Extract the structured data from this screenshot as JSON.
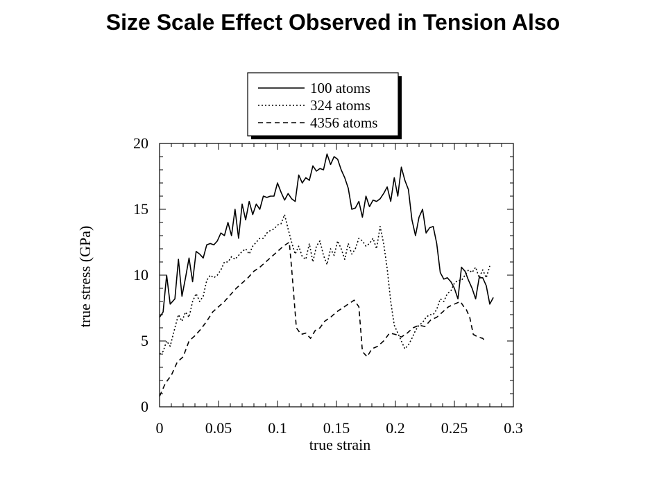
{
  "page_title": "Size Scale Effect Observed in Tension Also",
  "chart_data": {
    "type": "line",
    "title": "",
    "xlabel": "true strain",
    "ylabel": "true stress (GPa)",
    "xlim": [
      0,
      0.3
    ],
    "ylim": [
      0,
      20
    ],
    "xticks": [
      0,
      0.05,
      0.1,
      0.15,
      0.2,
      0.25,
      0.3
    ],
    "xtick_labels": [
      "0",
      "0.05",
      "0.1",
      "0.15",
      "0.2",
      "0.25",
      "0.3"
    ],
    "yticks": [
      0,
      5,
      10,
      15,
      20
    ],
    "ytick_labels": [
      "0",
      "5",
      "10",
      "15",
      "20"
    ],
    "grid": false,
    "legend_position": "above plot, right-center",
    "series": [
      {
        "name": "100 atoms",
        "line_style": "solid",
        "color": "#000000",
        "x": [
          0.0,
          0.003,
          0.006,
          0.009,
          0.013,
          0.016,
          0.019,
          0.022,
          0.025,
          0.028,
          0.031,
          0.034,
          0.037,
          0.04,
          0.043,
          0.046,
          0.049,
          0.052,
          0.055,
          0.058,
          0.061,
          0.064,
          0.067,
          0.07,
          0.073,
          0.076,
          0.079,
          0.082,
          0.085,
          0.088,
          0.091,
          0.094,
          0.097,
          0.1,
          0.103,
          0.106,
          0.109,
          0.112,
          0.115,
          0.118,
          0.121,
          0.124,
          0.127,
          0.13,
          0.133,
          0.136,
          0.139,
          0.142,
          0.145,
          0.148,
          0.151,
          0.154,
          0.157,
          0.16,
          0.163,
          0.166,
          0.169,
          0.172,
          0.175,
          0.178,
          0.181,
          0.184,
          0.187,
          0.19,
          0.193,
          0.196,
          0.199,
          0.202,
          0.205,
          0.208,
          0.211,
          0.214,
          0.217,
          0.22,
          0.223,
          0.226,
          0.229,
          0.232,
          0.235,
          0.238,
          0.241,
          0.244,
          0.247,
          0.25,
          0.253,
          0.256,
          0.259,
          0.262,
          0.265,
          0.268,
          0.271,
          0.274,
          0.277,
          0.28,
          0.283
        ],
        "y": [
          6.8,
          7.2,
          10.0,
          7.8,
          8.2,
          11.2,
          8.4,
          9.8,
          11.3,
          9.5,
          11.8,
          11.6,
          11.3,
          12.3,
          12.4,
          12.3,
          12.6,
          13.2,
          13.0,
          14.0,
          13.0,
          15.0,
          12.8,
          15.4,
          14.2,
          15.6,
          14.6,
          15.4,
          15.0,
          16.0,
          15.9,
          16.0,
          16.0,
          17.0,
          16.3,
          15.7,
          16.2,
          15.8,
          15.6,
          17.6,
          17.0,
          17.4,
          17.2,
          18.3,
          17.9,
          18.1,
          18.0,
          19.2,
          18.4,
          19.0,
          18.8,
          18.0,
          17.4,
          16.6,
          15.0,
          15.1,
          15.6,
          14.4,
          16.0,
          15.2,
          15.7,
          15.6,
          15.8,
          16.2,
          16.7,
          15.6,
          17.4,
          16.0,
          18.2,
          17.2,
          16.5,
          14.2,
          13.0,
          14.4,
          15.0,
          13.2,
          13.6,
          13.7,
          12.4,
          10.2,
          9.7,
          9.8,
          9.5,
          9.0,
          8.2,
          10.6,
          10.3,
          9.6,
          9.0,
          8.2,
          9.8,
          9.8,
          9.2,
          7.8,
          8.3
        ]
      },
      {
        "name": "324 atoms",
        "line_style": "dotted",
        "color": "#000000",
        "x": [
          0.0,
          0.003,
          0.006,
          0.009,
          0.013,
          0.016,
          0.019,
          0.022,
          0.025,
          0.028,
          0.031,
          0.034,
          0.037,
          0.04,
          0.043,
          0.046,
          0.049,
          0.052,
          0.055,
          0.058,
          0.061,
          0.064,
          0.067,
          0.07,
          0.073,
          0.076,
          0.079,
          0.082,
          0.085,
          0.088,
          0.091,
          0.094,
          0.097,
          0.1,
          0.103,
          0.106,
          0.109,
          0.112,
          0.115,
          0.118,
          0.121,
          0.124,
          0.127,
          0.13,
          0.133,
          0.136,
          0.139,
          0.142,
          0.145,
          0.148,
          0.151,
          0.154,
          0.157,
          0.16,
          0.163,
          0.166,
          0.169,
          0.172,
          0.175,
          0.178,
          0.181,
          0.184,
          0.187,
          0.19,
          0.193,
          0.196,
          0.199,
          0.202,
          0.205,
          0.208,
          0.211,
          0.214,
          0.217,
          0.22,
          0.223,
          0.226,
          0.229,
          0.232,
          0.235,
          0.238,
          0.241,
          0.244,
          0.247,
          0.25,
          0.253,
          0.256,
          0.259,
          0.262,
          0.265,
          0.268,
          0.271,
          0.274,
          0.277,
          0.28
        ],
        "y": [
          4.0,
          4.2,
          5.0,
          4.6,
          6.0,
          7.0,
          6.5,
          7.2,
          6.8,
          8.0,
          8.6,
          8.0,
          8.4,
          9.6,
          10.0,
          9.8,
          10.0,
          10.4,
          11.0,
          11.0,
          11.4,
          11.2,
          11.5,
          11.8,
          12.0,
          11.6,
          12.2,
          12.5,
          12.8,
          12.8,
          13.2,
          13.4,
          13.5,
          13.8,
          13.9,
          14.6,
          13.5,
          12.5,
          11.6,
          12.2,
          11.4,
          11.2,
          12.4,
          11.0,
          12.2,
          12.6,
          11.5,
          10.8,
          12.0,
          11.5,
          12.6,
          12.0,
          11.2,
          12.4,
          11.6,
          12.0,
          12.8,
          12.6,
          12.2,
          12.4,
          12.8,
          12.0,
          13.7,
          12.4,
          10.5,
          8.0,
          6.2,
          5.6,
          5.0,
          4.4,
          4.7,
          5.2,
          5.8,
          6.2,
          6.4,
          6.8,
          7.0,
          7.0,
          7.4,
          8.2,
          8.0,
          8.6,
          8.8,
          9.4,
          9.6,
          9.6,
          10.0,
          10.4,
          10.2,
          10.6,
          9.8,
          10.4,
          9.8,
          10.7
        ]
      },
      {
        "name": "4356 atoms",
        "line_style": "dashed",
        "color": "#000000",
        "x": [
          0.0,
          0.005,
          0.01,
          0.015,
          0.02,
          0.025,
          0.03,
          0.035,
          0.04,
          0.045,
          0.05,
          0.055,
          0.06,
          0.065,
          0.07,
          0.075,
          0.08,
          0.085,
          0.09,
          0.095,
          0.1,
          0.105,
          0.11,
          0.112,
          0.116,
          0.12,
          0.124,
          0.128,
          0.132,
          0.136,
          0.14,
          0.145,
          0.15,
          0.155,
          0.16,
          0.165,
          0.169,
          0.172,
          0.176,
          0.18,
          0.185,
          0.19,
          0.195,
          0.2,
          0.205,
          0.21,
          0.215,
          0.22,
          0.225,
          0.23,
          0.235,
          0.24,
          0.245,
          0.25,
          0.255,
          0.258,
          0.26,
          0.263,
          0.266,
          0.27,
          0.274,
          0.276
        ],
        "y": [
          0.8,
          1.8,
          2.4,
          3.4,
          3.8,
          5.0,
          5.4,
          5.9,
          6.5,
          7.2,
          7.6,
          8.0,
          8.5,
          9.0,
          9.4,
          9.8,
          10.3,
          10.6,
          11.0,
          11.4,
          11.8,
          12.2,
          12.5,
          10.5,
          6.0,
          5.5,
          5.6,
          5.2,
          5.8,
          6.0,
          6.5,
          6.8,
          7.2,
          7.5,
          7.8,
          8.1,
          7.6,
          4.2,
          3.8,
          4.4,
          4.6,
          5.0,
          5.6,
          5.5,
          5.3,
          5.6,
          6.0,
          6.2,
          6.1,
          6.6,
          6.8,
          7.2,
          7.6,
          7.8,
          8.0,
          7.6,
          7.4,
          6.8,
          5.5,
          5.3,
          5.2,
          5.0
        ]
      }
    ]
  }
}
